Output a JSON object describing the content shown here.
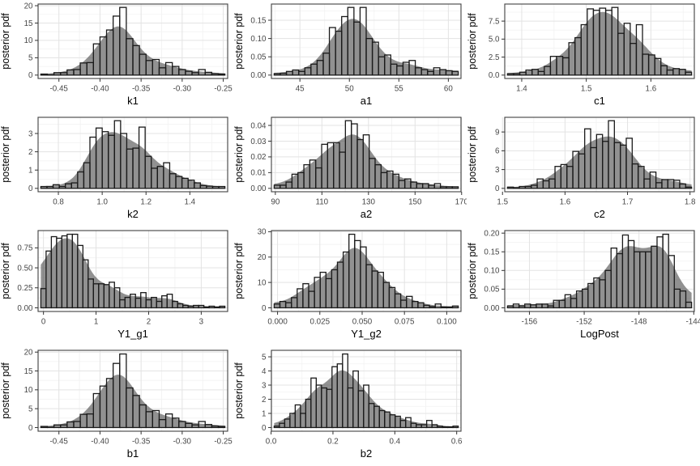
{
  "figure": {
    "ylabel": "posterior pdf",
    "colors": {
      "background": "#ffffff",
      "panel_border": "#404040",
      "grid_major": "#e3e3e3",
      "grid_minor": "#f2f2f2",
      "bar_fill": "#ffffff",
      "bar_stroke": "#1a1a1a",
      "density_fill": "rgba(77,77,77,0.62)",
      "tick_mark": "#333333",
      "tick_label": "#474747",
      "axis_title": "#000000"
    }
  },
  "chart_data": [
    {
      "type": "bar",
      "name": "k1",
      "xlabel": "k1",
      "ylabel": "posterior pdf",
      "bins": {
        "start": -0.472,
        "width": 0.008,
        "heights": [
          0.3,
          0.1,
          0.7,
          0.7,
          1.5,
          1.6,
          3.5,
          3.6,
          9.0,
          11.0,
          13.0,
          17.0,
          19.5,
          10.5,
          8.5,
          6.0,
          4.2,
          4.5,
          2.1,
          3.6,
          2.5,
          1.6,
          1.1,
          0.7,
          1.6,
          0.8,
          0.4,
          0.3
        ]
      },
      "ylim": [
        0,
        19.5
      ],
      "x_ticks": [
        {
          "v": -0.45,
          "label": "-0.45"
        },
        {
          "v": -0.4,
          "label": "-0.40"
        },
        {
          "v": -0.35,
          "label": "-0.35"
        },
        {
          "v": -0.3,
          "label": "-0.30"
        },
        {
          "v": -0.25,
          "label": "-0.25"
        }
      ],
      "y_ticks": [
        {
          "v": 0,
          "label": "0"
        },
        {
          "v": 5,
          "label": "5"
        },
        {
          "v": 10,
          "label": "10"
        },
        {
          "v": 15,
          "label": "15"
        },
        {
          "v": 20,
          "label": "20"
        }
      ]
    },
    {
      "type": "bar",
      "name": "a1",
      "xlabel": "a1",
      "ylabel": "posterior pdf",
      "bins": {
        "start": 42.4,
        "width": 0.62,
        "heights": [
          0.004,
          0.005,
          0.01,
          0.014,
          0.01,
          0.02,
          0.03,
          0.04,
          0.06,
          0.13,
          0.12,
          0.16,
          0.185,
          0.145,
          0.185,
          0.1,
          0.09,
          0.05,
          0.055,
          0.03,
          0.025,
          0.035,
          0.04,
          0.02,
          0.015,
          0.01,
          0.02,
          0.015,
          0.012,
          0.01
        ]
      },
      "ylim": [
        0,
        0.185
      ],
      "x_ticks": [
        {
          "v": 45,
          "label": "45"
        },
        {
          "v": 50,
          "label": "50"
        },
        {
          "v": 55,
          "label": "55"
        },
        {
          "v": 60,
          "label": "60"
        }
      ],
      "y_ticks": [
        {
          "v": 0,
          "label": "0.00"
        },
        {
          "v": 0.05,
          "label": "0.05"
        },
        {
          "v": 0.1,
          "label": "0.10"
        },
        {
          "v": 0.15,
          "label": "0.15"
        }
      ]
    },
    {
      "type": "bar",
      "name": "c1",
      "xlabel": "c1",
      "ylabel": "posterior pdf",
      "bins": {
        "start": 1.378,
        "width": 0.0095,
        "heights": [
          0.2,
          0.2,
          0.4,
          0.7,
          0.8,
          0.5,
          1.2,
          2.6,
          2.6,
          2.4,
          4.5,
          5.2,
          7.0,
          9.2,
          9.0,
          9.3,
          9.0,
          9.4,
          5.8,
          7.2,
          4.4,
          7.0,
          2.9,
          2.8,
          2.3,
          1.3,
          0.7,
          0.9,
          0.8,
          0.4
        ]
      },
      "ylim": [
        0,
        9.4
      ],
      "x_ticks": [
        {
          "v": 1.4,
          "label": "1.4"
        },
        {
          "v": 1.5,
          "label": "1.5"
        },
        {
          "v": 1.6,
          "label": "1.6"
        }
      ],
      "y_ticks": [
        {
          "v": 0,
          "label": "0.0"
        },
        {
          "v": 2.5,
          "label": "2.5"
        },
        {
          "v": 5.0,
          "label": "5.0"
        },
        {
          "v": 7.5,
          "label": "7.5"
        }
      ]
    },
    {
      "type": "bar",
      "name": "k2",
      "xlabel": "k2",
      "ylabel": "posterior pdf",
      "bins": {
        "start": 0.72,
        "width": 0.028,
        "heights": [
          0.1,
          0.1,
          0.2,
          0.1,
          0.25,
          0.3,
          0.9,
          1.4,
          2.8,
          3.3,
          3.1,
          2.9,
          3.7,
          3.0,
          2.15,
          2.2,
          3.35,
          1.75,
          1.1,
          1.2,
          1.4,
          0.8,
          0.65,
          0.55,
          0.45,
          0.3,
          0.15,
          0.12,
          0.1,
          0.1
        ]
      },
      "ylim": [
        0,
        3.7
      ],
      "x_ticks": [
        {
          "v": 0.8,
          "label": "0.8"
        },
        {
          "v": 1.0,
          "label": "1.0"
        },
        {
          "v": 1.2,
          "label": "1.2"
        },
        {
          "v": 1.4,
          "label": "1.4"
        }
      ],
      "y_ticks": [
        {
          "v": 0,
          "label": "0"
        },
        {
          "v": 1,
          "label": "1"
        },
        {
          "v": 2,
          "label": "2"
        },
        {
          "v": 3,
          "label": "3"
        }
      ]
    },
    {
      "type": "bar",
      "name": "a2",
      "xlabel": "a2",
      "ylabel": "posterior pdf",
      "bins": {
        "start": 89.5,
        "width": 2.55,
        "heights": [
          0.002,
          0.002,
          0.004,
          0.009,
          0.01,
          0.015,
          0.018,
          0.013,
          0.028,
          0.029,
          0.029,
          0.023,
          0.043,
          0.041,
          0.031,
          0.034,
          0.019,
          0.015,
          0.01,
          0.011,
          0.009,
          0.005,
          0.006,
          0.004,
          0.003,
          0.003,
          0.002,
          0.003,
          0.001,
          0.001,
          0.001
        ]
      },
      "ylim": [
        0,
        0.043
      ],
      "x_ticks": [
        {
          "v": 90,
          "label": "90"
        },
        {
          "v": 110,
          "label": "110"
        },
        {
          "v": 130,
          "label": "130"
        },
        {
          "v": 150,
          "label": "150"
        },
        {
          "v": 170,
          "label": "170"
        }
      ],
      "y_ticks": [
        {
          "v": 0,
          "label": "0.00"
        },
        {
          "v": 0.01,
          "label": "0.01"
        },
        {
          "v": 0.02,
          "label": "0.02"
        },
        {
          "v": 0.03,
          "label": "0.03"
        },
        {
          "v": 0.04,
          "label": "0.04"
        }
      ]
    },
    {
      "type": "bar",
      "name": "c2",
      "xlabel": "c2",
      "ylabel": "posterior pdf",
      "bins": {
        "start": 1.508,
        "width": 0.0095,
        "heights": [
          0.2,
          0.1,
          0.3,
          0.3,
          0.5,
          1.5,
          1.2,
          1.5,
          3.5,
          3.8,
          3.5,
          5.9,
          5.5,
          9.5,
          6.5,
          8.6,
          7.5,
          10.8,
          7.3,
          6.9,
          8.0,
          3.9,
          3.5,
          1.5,
          2.6,
          0.9,
          1.4,
          1.4,
          1.3,
          0.7,
          0.2
        ]
      },
      "ylim": [
        0,
        10.8
      ],
      "x_ticks": [
        {
          "v": 1.5,
          "label": "1.5"
        },
        {
          "v": 1.6,
          "label": "1.6"
        },
        {
          "v": 1.7,
          "label": "1.7"
        },
        {
          "v": 1.8,
          "label": "1.8"
        }
      ],
      "y_ticks": [
        {
          "v": 0,
          "label": "0"
        },
        {
          "v": 3,
          "label": "3"
        },
        {
          "v": 6,
          "label": "6"
        },
        {
          "v": 9,
          "label": "9"
        }
      ]
    },
    {
      "type": "bar",
      "name": "Y1_g1",
      "xlabel": "Y1_g1",
      "ylabel": "posterior pdf",
      "bins": {
        "start": -0.05,
        "width": 0.1,
        "heights": [
          0.24,
          0.71,
          0.89,
          0.87,
          0.9,
          0.92,
          0.92,
          0.78,
          0.6,
          0.36,
          0.3,
          0.3,
          0.29,
          0.32,
          0.25,
          0.1,
          0.13,
          0.17,
          0.12,
          0.19,
          0.1,
          0.13,
          0.08,
          0.15,
          0.17,
          0.08,
          0.05,
          0.03,
          0.02,
          0.03,
          0.03,
          0.01,
          0.02,
          0.01,
          0.02
        ]
      },
      "ylim": [
        0,
        0.92
      ],
      "x_ticks": [
        {
          "v": 0,
          "label": "0"
        },
        {
          "v": 1,
          "label": "1"
        },
        {
          "v": 2,
          "label": "2"
        },
        {
          "v": 3,
          "label": "3"
        }
      ],
      "y_ticks": [
        {
          "v": 0,
          "label": "0.00"
        },
        {
          "v": 0.25,
          "label": "0.25"
        },
        {
          "v": 0.5,
          "label": "0.50"
        },
        {
          "v": 0.75,
          "label": "0.75"
        }
      ]
    },
    {
      "type": "bar",
      "name": "Y1_g2",
      "xlabel": "Y1_g2",
      "ylabel": "posterior pdf",
      "bins": {
        "start": -0.002,
        "width": 0.0034,
        "heights": [
          1.5,
          2.5,
          2.0,
          4.0,
          7.5,
          9.5,
          6.5,
          12,
          14,
          11.5,
          15,
          18,
          22,
          29,
          26.5,
          24,
          17,
          14.5,
          14,
          10,
          8,
          5.5,
          3,
          4.5,
          2.5,
          2,
          1,
          0.5,
          1.5,
          0.3,
          0.3,
          0.7
        ]
      },
      "ylim": [
        0,
        29
      ],
      "x_ticks": [
        {
          "v": 0.0,
          "label": "0.000"
        },
        {
          "v": 0.025,
          "label": "0.025"
        },
        {
          "v": 0.05,
          "label": "0.050"
        },
        {
          "v": 0.075,
          "label": "0.075"
        },
        {
          "v": 0.1,
          "label": "0.100"
        }
      ],
      "y_ticks": [
        {
          "v": 0,
          "label": "0"
        },
        {
          "v": 10,
          "label": "10"
        },
        {
          "v": 20,
          "label": "20"
        },
        {
          "v": 30,
          "label": "30"
        }
      ]
    },
    {
      "type": "bar",
      "name": "LogPost",
      "xlabel": "LogPost",
      "ylabel": "posterior pdf",
      "bins": {
        "start": -157.6,
        "width": 0.42,
        "heights": [
          0.005,
          0.01,
          0.005,
          0.01,
          0.008,
          0.01,
          0.01,
          0.005,
          0.02,
          0.02,
          0.035,
          0.025,
          0.045,
          0.05,
          0.065,
          0.08,
          0.075,
          0.1,
          0.16,
          0.145,
          0.195,
          0.18,
          0.15,
          0.15,
          0.15,
          0.165,
          0.19,
          0.197,
          0.14,
          0.05,
          0.045,
          0.015
        ]
      },
      "ylim": [
        0,
        0.197
      ],
      "x_ticks": [
        {
          "v": -156,
          "label": "-156"
        },
        {
          "v": -152,
          "label": "-152"
        },
        {
          "v": -148,
          "label": "-148"
        },
        {
          "v": -144,
          "label": "-144"
        }
      ],
      "y_ticks": [
        {
          "v": 0,
          "label": "0.00"
        },
        {
          "v": 0.05,
          "label": "0.05"
        },
        {
          "v": 0.1,
          "label": "0.10"
        },
        {
          "v": 0.15,
          "label": "0.15"
        },
        {
          "v": 0.2,
          "label": "0.20"
        }
      ]
    },
    {
      "type": "bar",
      "name": "b1",
      "xlabel": "b1",
      "ylabel": "posterior pdf",
      "bins": {
        "start": -0.472,
        "width": 0.008,
        "heights": [
          0.3,
          0.1,
          0.7,
          0.7,
          1.5,
          1.6,
          3.5,
          3.6,
          9.0,
          11.0,
          13.0,
          17.0,
          19.5,
          10.5,
          8.5,
          6.0,
          4.2,
          4.5,
          2.1,
          3.6,
          2.5,
          1.6,
          1.1,
          0.7,
          1.6,
          0.8,
          0.4,
          0.3
        ]
      },
      "ylim": [
        0,
        19.5
      ],
      "x_ticks": [
        {
          "v": -0.45,
          "label": "-0.45"
        },
        {
          "v": -0.4,
          "label": "-0.40"
        },
        {
          "v": -0.35,
          "label": "-0.35"
        },
        {
          "v": -0.3,
          "label": "-0.30"
        },
        {
          "v": -0.25,
          "label": "-0.25"
        }
      ],
      "y_ticks": [
        {
          "v": 0,
          "label": "0"
        },
        {
          "v": 5,
          "label": "5"
        },
        {
          "v": 10,
          "label": "10"
        },
        {
          "v": 15,
          "label": "15"
        },
        {
          "v": 20,
          "label": "20"
        }
      ]
    },
    {
      "type": "bar",
      "name": "b2",
      "xlabel": "b2",
      "ylabel": "posterior pdf",
      "bins": {
        "start": 0.01,
        "width": 0.017,
        "heights": [
          0.1,
          0.3,
          0.6,
          1.0,
          1.6,
          1.0,
          2.0,
          3.5,
          3.0,
          2.8,
          2.7,
          4.3,
          4.5,
          5.2,
          2.8,
          4.0,
          2.6,
          3.0,
          1.7,
          1.5,
          1.2,
          1.1,
          0.9,
          0.8,
          0.5,
          0.7,
          0.3,
          0.2,
          0.2,
          0.5,
          0.2,
          0.1,
          0.05,
          0.05,
          0.1
        ]
      },
      "ylim": [
        0,
        5.2
      ],
      "x_ticks": [
        {
          "v": 0.0,
          "label": "0.0"
        },
        {
          "v": 0.2,
          "label": "0.2"
        },
        {
          "v": 0.4,
          "label": "0.4"
        },
        {
          "v": 0.6,
          "label": "0.6"
        }
      ],
      "y_ticks": [
        {
          "v": 0,
          "label": "0"
        },
        {
          "v": 1,
          "label": "1"
        },
        {
          "v": 2,
          "label": "2"
        },
        {
          "v": 3,
          "label": "3"
        },
        {
          "v": 4,
          "label": "4"
        },
        {
          "v": 5,
          "label": "5"
        }
      ]
    }
  ]
}
